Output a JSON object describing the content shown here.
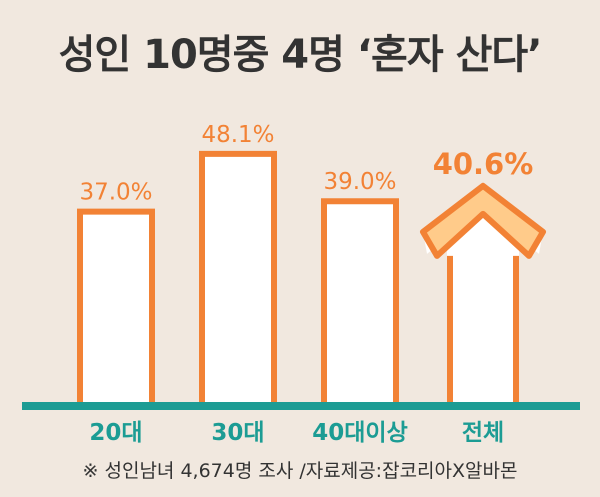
{
  "title": "성인 10명중 4명 ‘혼자 산다’",
  "source_note": "※ 성인남녀 4,674명 조사 /자료제공:잡코리아X알바몬",
  "colors": {
    "bar_stroke": "#F28235",
    "bar_fill": "#FFFFFF",
    "highlight_stroke": "#F28235",
    "highlight_fill": "#FFCB8A",
    "baseline": "#1C9C94",
    "category_text": "#1C9C94",
    "value_text": "#F28235",
    "background": "#F1E8DF"
  },
  "chart_data": {
    "type": "bar",
    "categories": [
      "20대",
      "30대",
      "40대이상",
      "전체"
    ],
    "values": [
      37.0,
      48.1,
      39.0,
      40.6
    ],
    "value_labels": [
      "37.0%",
      "48.1%",
      "39.0%",
      "40.6%"
    ],
    "highlight_index": 3,
    "highlight_style": "arrow",
    "grid": false,
    "legend": "none"
  }
}
